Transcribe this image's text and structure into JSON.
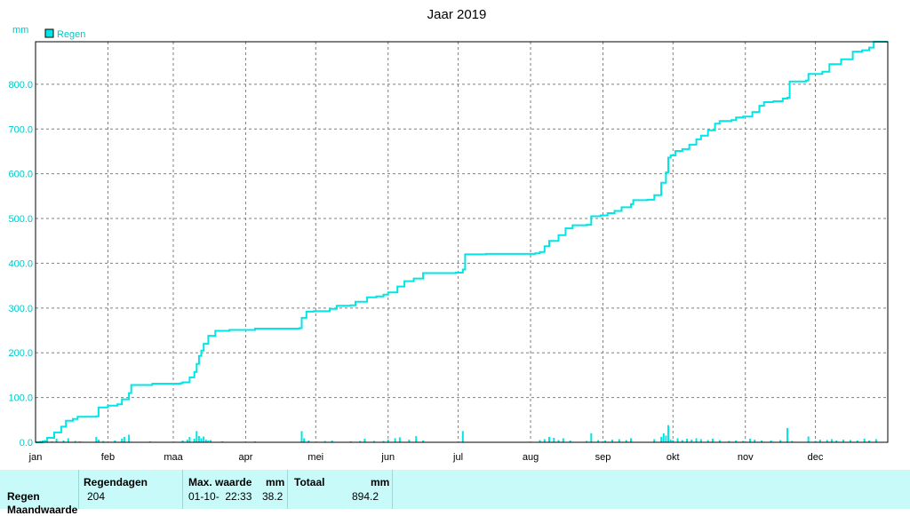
{
  "page": {
    "title": "Jaar 2019"
  },
  "legend": {
    "unit": "mm",
    "label": "Regen",
    "color": "#00e6e6"
  },
  "chart_data": {
    "type": "line",
    "title": "Jaar 2019",
    "ylabel": "mm",
    "ylim": [
      0,
      895
    ],
    "yticks": [
      "0.0",
      "100.0",
      "200.0",
      "300.0",
      "400.0",
      "500.0",
      "600.0",
      "700.0",
      "800.0"
    ],
    "ytick_values": [
      0,
      100,
      200,
      300,
      400,
      500,
      600,
      700,
      800
    ],
    "xlim": [
      0,
      365
    ],
    "months": [
      "jan",
      "feb",
      "maa",
      "apr",
      "mei",
      "jun",
      "jul",
      "aug",
      "sep",
      "okt",
      "nov",
      "dec"
    ],
    "month_start_days": [
      0,
      31,
      59,
      90,
      120,
      151,
      181,
      212,
      243,
      273,
      304,
      334
    ],
    "grid": true,
    "legend_position": "top-left",
    "series": [
      {
        "name": "Regen",
        "kind": "cumulative",
        "color": "#00e6e6",
        "points": [
          [
            0,
            0
          ],
          [
            3,
            2
          ],
          [
            5,
            10
          ],
          [
            8,
            22
          ],
          [
            11,
            35
          ],
          [
            13,
            48
          ],
          [
            16,
            52
          ],
          [
            18,
            57
          ],
          [
            26,
            58
          ],
          [
            27,
            78
          ],
          [
            31,
            82
          ],
          [
            35,
            85
          ],
          [
            37,
            96
          ],
          [
            40,
            110
          ],
          [
            41,
            128
          ],
          [
            50,
            131
          ],
          [
            62,
            132
          ],
          [
            63,
            134
          ],
          [
            66,
            145
          ],
          [
            68,
            157
          ],
          [
            69,
            175
          ],
          [
            70,
            193
          ],
          [
            71,
            205
          ],
          [
            72,
            220
          ],
          [
            74,
            238
          ],
          [
            77,
            249
          ],
          [
            83,
            251
          ],
          [
            94,
            254
          ],
          [
            113,
            255
          ],
          [
            114,
            278
          ],
          [
            116,
            292
          ],
          [
            119,
            293
          ],
          [
            126,
            298
          ],
          [
            129,
            305
          ],
          [
            135,
            306
          ],
          [
            137,
            314
          ],
          [
            140,
            314
          ],
          [
            142,
            324
          ],
          [
            146,
            326
          ],
          [
            149,
            330
          ],
          [
            151,
            335
          ],
          [
            155,
            348
          ],
          [
            158,
            360
          ],
          [
            162,
            366
          ],
          [
            166,
            378
          ],
          [
            180,
            379
          ],
          [
            183,
            386
          ],
          [
            184,
            420
          ],
          [
            193,
            421
          ],
          [
            214,
            422
          ],
          [
            216,
            425
          ],
          [
            218,
            438
          ],
          [
            220,
            450
          ],
          [
            224,
            463
          ],
          [
            227,
            478
          ],
          [
            230,
            485
          ],
          [
            236,
            486
          ],
          [
            238,
            505
          ],
          [
            242,
            507
          ],
          [
            245,
            512
          ],
          [
            248,
            517
          ],
          [
            251,
            525
          ],
          [
            255,
            532
          ],
          [
            256,
            541
          ],
          [
            262,
            542
          ],
          [
            265,
            552
          ],
          [
            268,
            580
          ],
          [
            270,
            603
          ],
          [
            271,
            636
          ],
          [
            272,
            641
          ],
          [
            274,
            651
          ],
          [
            277,
            655
          ],
          [
            280,
            665
          ],
          [
            283,
            677
          ],
          [
            285,
            685
          ],
          [
            288,
            697
          ],
          [
            291,
            712
          ],
          [
            293,
            718
          ],
          [
            298,
            720
          ],
          [
            300,
            726
          ],
          [
            303,
            728
          ],
          [
            307,
            738
          ],
          [
            310,
            752
          ],
          [
            312,
            760
          ],
          [
            316,
            762
          ],
          [
            320,
            768
          ],
          [
            322,
            770
          ],
          [
            323,
            806
          ],
          [
            330,
            808
          ],
          [
            331,
            823
          ],
          [
            337,
            828
          ],
          [
            340,
            845
          ],
          [
            345,
            856
          ],
          [
            350,
            873
          ],
          [
            354,
            876
          ],
          [
            357,
            882
          ],
          [
            359,
            895
          ],
          [
            365,
            895
          ]
        ]
      },
      {
        "name": "Regen",
        "kind": "daily",
        "color": "#00e6e6",
        "points": [
          [
            2,
            3
          ],
          [
            4,
            5
          ],
          [
            7,
            2
          ],
          [
            9,
            8
          ],
          [
            12,
            4
          ],
          [
            14,
            9
          ],
          [
            17,
            3
          ],
          [
            19,
            2
          ],
          [
            25,
            1
          ],
          [
            26,
            12
          ],
          [
            27,
            6
          ],
          [
            29,
            3
          ],
          [
            34,
            4
          ],
          [
            37,
            8
          ],
          [
            38,
            12
          ],
          [
            40,
            17
          ],
          [
            49,
            2
          ],
          [
            61,
            1
          ],
          [
            63,
            4
          ],
          [
            65,
            6
          ],
          [
            66,
            12
          ],
          [
            68,
            8
          ],
          [
            69,
            25
          ],
          [
            70,
            14
          ],
          [
            71,
            9
          ],
          [
            72,
            13
          ],
          [
            73,
            6
          ],
          [
            74,
            4
          ],
          [
            75,
            5
          ],
          [
            80,
            2
          ],
          [
            94,
            2
          ],
          [
            112,
            1
          ],
          [
            114,
            25
          ],
          [
            115,
            9
          ],
          [
            117,
            4
          ],
          [
            124,
            3
          ],
          [
            127,
            4
          ],
          [
            135,
            2
          ],
          [
            139,
            3
          ],
          [
            141,
            8
          ],
          [
            145,
            3
          ],
          [
            149,
            3
          ],
          [
            151,
            6
          ],
          [
            154,
            9
          ],
          [
            156,
            11
          ],
          [
            160,
            6
          ],
          [
            163,
            14
          ],
          [
            166,
            4
          ],
          [
            178,
            1
          ],
          [
            183,
            25
          ],
          [
            191,
            1
          ],
          [
            213,
            1
          ],
          [
            216,
            5
          ],
          [
            218,
            7
          ],
          [
            220,
            12
          ],
          [
            222,
            10
          ],
          [
            224,
            5
          ],
          [
            226,
            9
          ],
          [
            229,
            4
          ],
          [
            236,
            3
          ],
          [
            238,
            20
          ],
          [
            241,
            5
          ],
          [
            244,
            4
          ],
          [
            247,
            6
          ],
          [
            250,
            7
          ],
          [
            253,
            5
          ],
          [
            255,
            9
          ],
          [
            261,
            1
          ],
          [
            265,
            7
          ],
          [
            268,
            12
          ],
          [
            269,
            20
          ],
          [
            270,
            15
          ],
          [
            271,
            38.2
          ],
          [
            272,
            6
          ],
          [
            273,
            5
          ],
          [
            275,
            9
          ],
          [
            277,
            5
          ],
          [
            279,
            8
          ],
          [
            281,
            6
          ],
          [
            283,
            9
          ],
          [
            285,
            7
          ],
          [
            288,
            5
          ],
          [
            290,
            8
          ],
          [
            293,
            5
          ],
          [
            297,
            3
          ],
          [
            300,
            4
          ],
          [
            303,
            3
          ],
          [
            306,
            8
          ],
          [
            308,
            6
          ],
          [
            311,
            4
          ],
          [
            315,
            4
          ],
          [
            319,
            5
          ],
          [
            322,
            32
          ],
          [
            324,
            3
          ],
          [
            331,
            13
          ],
          [
            334,
            3
          ],
          [
            336,
            6
          ],
          [
            339,
            5
          ],
          [
            341,
            7
          ],
          [
            343,
            4
          ],
          [
            346,
            6
          ],
          [
            349,
            5
          ],
          [
            352,
            4
          ],
          [
            355,
            8
          ],
          [
            357,
            4
          ],
          [
            360,
            7
          ]
        ]
      }
    ]
  },
  "stats": {
    "row_label": "Regen",
    "row2_label": "Maandwaarde",
    "regendagen_header": "Regendagen",
    "regendagen_value": "204",
    "max_header": "Max. waarde",
    "max_unit": "mm",
    "max_datetime": "01-10-  22:33",
    "max_value": "38.2",
    "totaal_header": "Totaal",
    "totaal_unit": "mm",
    "totaal_value": "894.2"
  }
}
